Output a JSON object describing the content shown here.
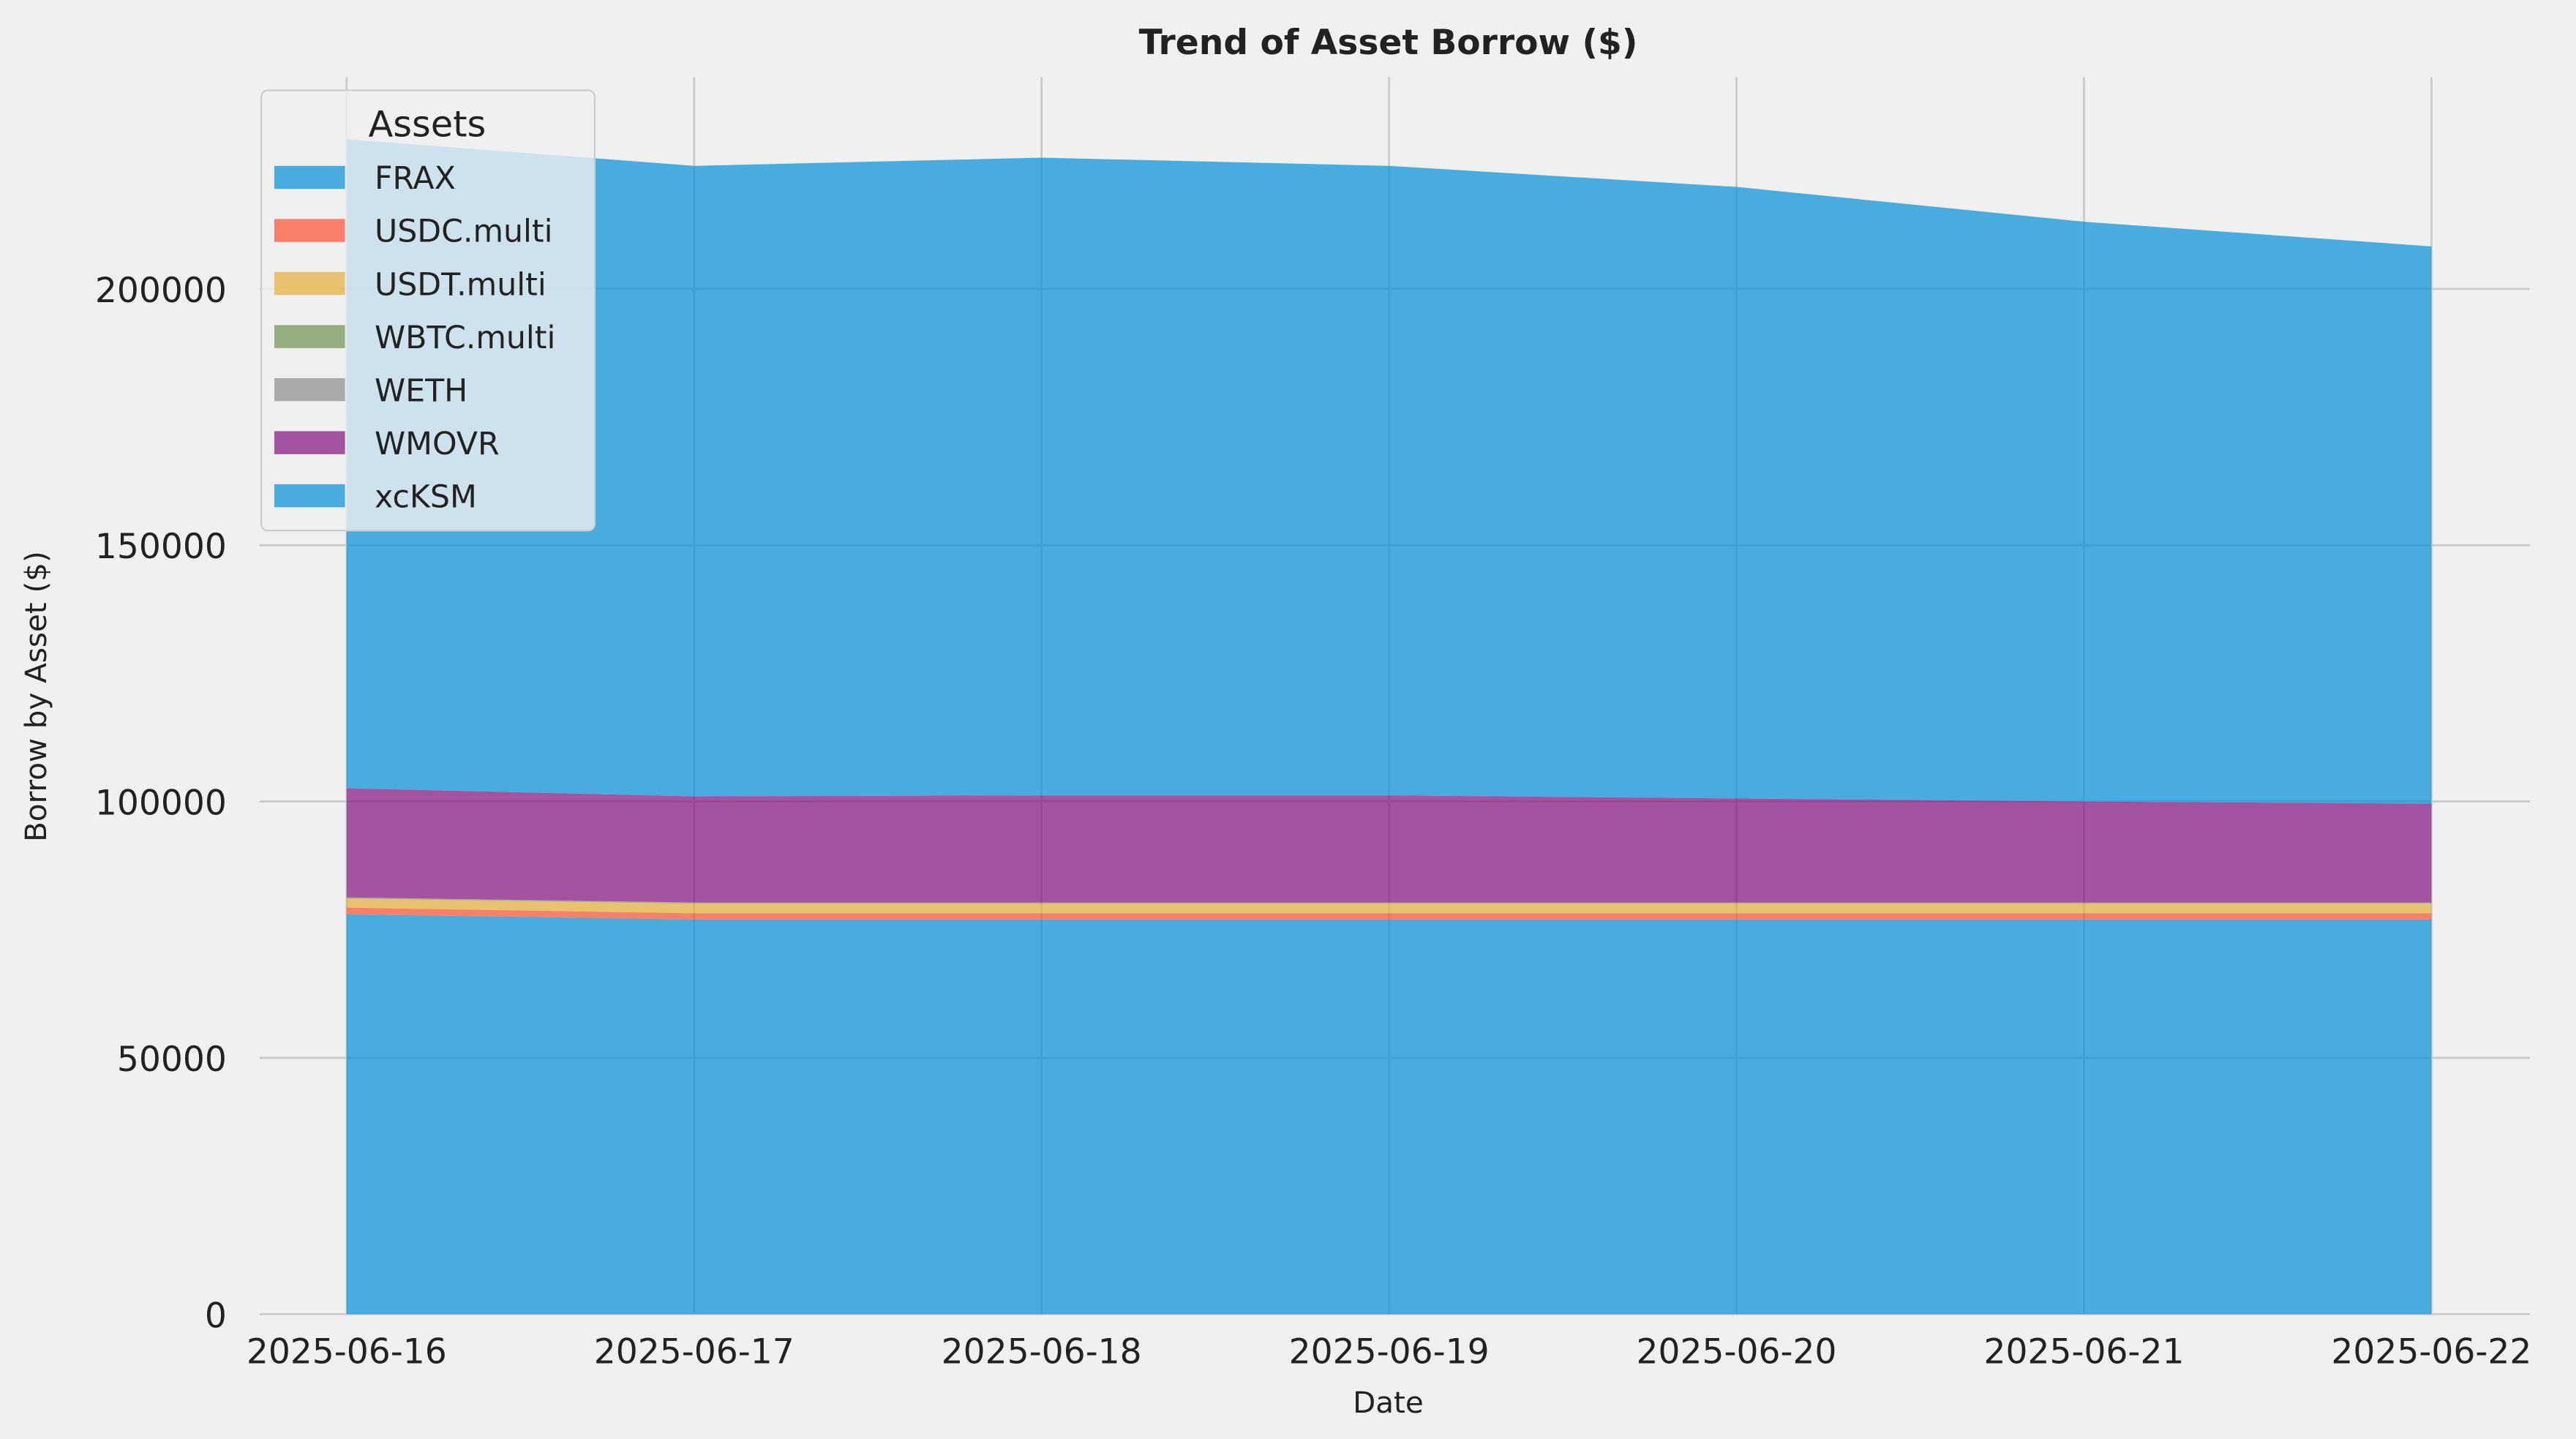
{
  "chart_data": {
    "type": "stacked_area",
    "title": "Trend of Asset Borrow ($)",
    "x_label": "Date",
    "y_label": "Borrow by Asset ($)",
    "categories": [
      "2025-06-16",
      "2025-06-17",
      "2025-06-18",
      "2025-06-19",
      "2025-06-20",
      "2025-06-21",
      "2025-06-22"
    ],
    "series": [
      {
        "name": "FRAX",
        "color": "#008fd5",
        "values": [
          78000,
          77000,
          77000,
          77000,
          77000,
          77000,
          77000
        ]
      },
      {
        "name": "USDC.multi",
        "color": "#fc4f30",
        "values": [
          1300,
          1200,
          1200,
          1200,
          1200,
          1200,
          1200
        ]
      },
      {
        "name": "USDT.multi",
        "color": "#e5ae38",
        "values": [
          1800,
          1900,
          1900,
          1900,
          1900,
          1900,
          1900
        ]
      },
      {
        "name": "WBTC.multi",
        "color": "#6d904f",
        "values": [
          100,
          100,
          100,
          100,
          100,
          100,
          100
        ]
      },
      {
        "name": "WETH",
        "color": "#8b8b8b",
        "values": [
          100,
          100,
          100,
          100,
          100,
          100,
          100
        ]
      },
      {
        "name": "WMOVR",
        "color": "#810f7c",
        "values": [
          21300,
          20700,
          20900,
          20900,
          20300,
          19700,
          19300
        ]
      },
      {
        "name": "xcKSM",
        "color": "#008fd5",
        "values": [
          126600,
          123000,
          124400,
          122800,
          119300,
          113100,
          108700
        ]
      }
    ],
    "ylim": [
      0,
      241300
    ],
    "yticks": [
      0,
      50000,
      100000,
      150000,
      200000
    ],
    "grid": true,
    "legend": "upper left",
    "legend_title": "Assets"
  }
}
